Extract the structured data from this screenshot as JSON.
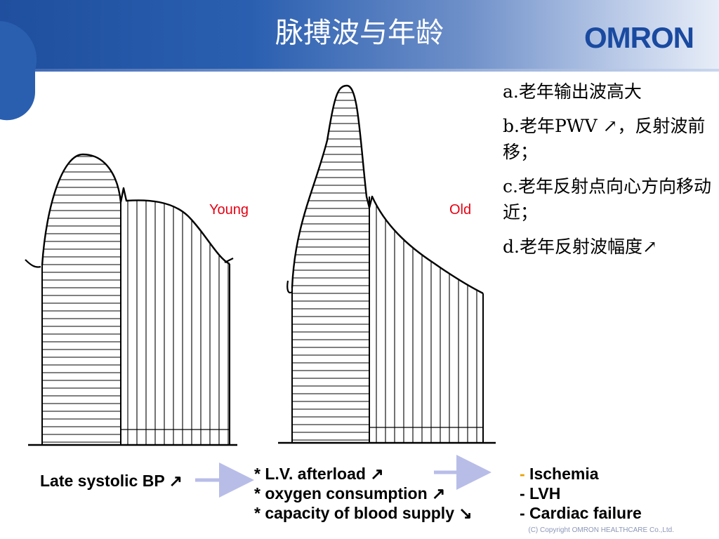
{
  "slide": {
    "title": "脉搏波与年龄",
    "logo": "OMRON",
    "copyright": "(C) Copyright OMRON HEALTHCARE Co.,Ltd."
  },
  "diagram": {
    "young_label": "Young",
    "old_label": "Old"
  },
  "notes": [
    "a.老年输出波高大",
    "b.老年PWV ↗，反射波前移；",
    "c.老年反射点向心方向移动近；",
    "d.老年反射波幅度↗"
  ],
  "bottom": {
    "late_systolic": "Late systolic BP ↗",
    "effects": [
      "* L.V. afterload ↗",
      "* oxygen consumption ↗",
      "* capacity of blood supply ↘"
    ],
    "outcomes": [
      {
        "dash": "-",
        "text": " Ischemia"
      },
      {
        "dash": "",
        "text": "- LVH"
      },
      {
        "dash": "",
        "text": "- Cardiac failure"
      }
    ]
  },
  "colors": {
    "header_blue": "#1f4f9e",
    "label_red": "#e60012",
    "arrow_lavender": "#b8bde8",
    "accent_orange": "#e8a100"
  }
}
